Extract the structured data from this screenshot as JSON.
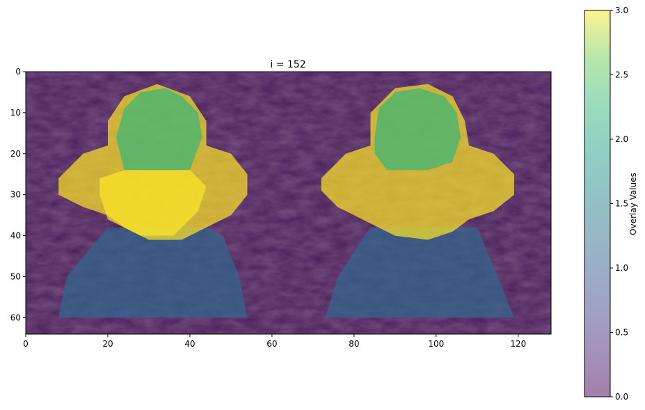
{
  "chart_data": {
    "type": "heatmap",
    "title": "i = 152",
    "xlabel": "",
    "ylabel": "",
    "xlim": [
      0,
      128
    ],
    "ylim": [
      64,
      0
    ],
    "xticks": [
      0,
      20,
      40,
      60,
      80,
      100,
      120
    ],
    "yticks": [
      0,
      10,
      20,
      30,
      40,
      50,
      60
    ],
    "grid": false,
    "colorbar": {
      "label": "Overlay Values",
      "range": [
        0.0,
        3.0
      ],
      "ticks": [
        "0.0",
        "0.5",
        "1.0",
        "1.5",
        "2.0",
        "2.5",
        "3.0"
      ],
      "colormap": "viridis",
      "alpha": 0.5
    },
    "colors": {
      "level0": "#440154",
      "level1": "#31688e",
      "level2": "#35b779",
      "level3": "#fde725"
    },
    "regions": [
      {
        "name": "left-lower-region",
        "value": 1,
        "polygon": [
          [
            20,
            38
          ],
          [
            10,
            50
          ],
          [
            8,
            60
          ],
          [
            54,
            60
          ],
          [
            52,
            50
          ],
          [
            48,
            40
          ],
          [
            44,
            38
          ]
        ]
      },
      {
        "name": "left-upper-region",
        "value": 3,
        "polygon": [
          [
            8,
            26
          ],
          [
            14,
            20
          ],
          [
            20,
            18
          ],
          [
            20,
            12
          ],
          [
            24,
            6
          ],
          [
            32,
            3
          ],
          [
            40,
            6
          ],
          [
            44,
            12
          ],
          [
            44,
            18
          ],
          [
            50,
            20
          ],
          [
            54,
            25
          ],
          [
            54,
            30
          ],
          [
            50,
            35
          ],
          [
            44,
            38
          ],
          [
            38,
            41
          ],
          [
            30,
            41
          ],
          [
            24,
            38
          ],
          [
            20,
            35
          ],
          [
            14,
            33
          ],
          [
            8,
            30
          ]
        ]
      },
      {
        "name": "left-top-region",
        "value": 2,
        "polygon": [
          [
            22,
            16
          ],
          [
            24,
            9
          ],
          [
            28,
            5
          ],
          [
            34,
            4
          ],
          [
            38,
            6
          ],
          [
            42,
            10
          ],
          [
            43,
            16
          ],
          [
            40,
            24
          ],
          [
            24,
            24
          ]
        ]
      },
      {
        "name": "left-bright-region",
        "value": 3,
        "polygon": [
          [
            18,
            26
          ],
          [
            24,
            24
          ],
          [
            40,
            24
          ],
          [
            44,
            28
          ],
          [
            42,
            34
          ],
          [
            36,
            40
          ],
          [
            28,
            40
          ],
          [
            20,
            36
          ],
          [
            18,
            30
          ]
        ]
      },
      {
        "name": "right-lower-region",
        "value": 1,
        "polygon": [
          [
            84,
            38
          ],
          [
            76,
            50
          ],
          [
            73,
            60
          ],
          [
            119,
            60
          ],
          [
            115,
            50
          ],
          [
            110,
            38
          ]
        ]
      },
      {
        "name": "right-upper-region",
        "value": 3,
        "polygon": [
          [
            72,
            26
          ],
          [
            78,
            20
          ],
          [
            84,
            18
          ],
          [
            84,
            10
          ],
          [
            90,
            4
          ],
          [
            98,
            3
          ],
          [
            104,
            6
          ],
          [
            107,
            12
          ],
          [
            108,
            18
          ],
          [
            114,
            20
          ],
          [
            119,
            25
          ],
          [
            119,
            30
          ],
          [
            114,
            34
          ],
          [
            108,
            36
          ],
          [
            104,
            39
          ],
          [
            98,
            41
          ],
          [
            90,
            40
          ],
          [
            84,
            37
          ],
          [
            76,
            33
          ],
          [
            72,
            29
          ]
        ]
      },
      {
        "name": "right-top-region",
        "value": 2,
        "polygon": [
          [
            85,
            16
          ],
          [
            86,
            9
          ],
          [
            90,
            5
          ],
          [
            96,
            4
          ],
          [
            102,
            6
          ],
          [
            105,
            10
          ],
          [
            106,
            16
          ],
          [
            104,
            22
          ],
          [
            98,
            24
          ],
          [
            88,
            24
          ],
          [
            85,
            20
          ]
        ]
      }
    ]
  }
}
